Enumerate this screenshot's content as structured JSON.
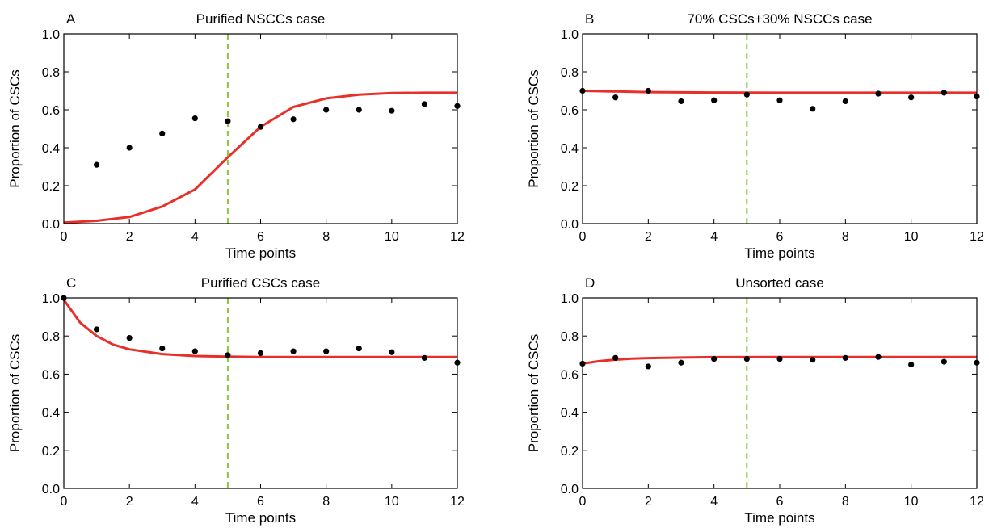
{
  "chart_data": [
    {
      "panel": "A",
      "title": "Purified NSCCs case",
      "type": "scatter",
      "xlabel": "Time points",
      "ylabel": "Proportion of CSCs",
      "xlim": [
        0,
        12
      ],
      "ylim": [
        0,
        1.0
      ],
      "xticks": [
        "0",
        "2",
        "4",
        "6",
        "8",
        "10",
        "12"
      ],
      "yticks": [
        "0.0",
        "0.2",
        "0.4",
        "0.6",
        "0.8",
        "1.0"
      ],
      "vline_x": 5,
      "points": {
        "x": [
          1,
          2,
          3,
          4,
          5,
          6,
          7,
          8,
          9,
          10,
          11,
          12
        ],
        "y": [
          0.31,
          0.4,
          0.475,
          0.555,
          0.54,
          0.51,
          0.55,
          0.6,
          0.6,
          0.595,
          0.63,
          0.62
        ]
      },
      "curve": {
        "x": [
          0,
          1,
          2,
          3,
          4,
          5,
          6,
          7,
          8,
          9,
          10,
          11,
          12
        ],
        "y": [
          0.005,
          0.015,
          0.035,
          0.09,
          0.18,
          0.35,
          0.51,
          0.615,
          0.66,
          0.68,
          0.688,
          0.69,
          0.69
        ]
      }
    },
    {
      "panel": "B",
      "title": "70% CSCs+30% NSCCs case",
      "type": "scatter",
      "xlabel": "Time points",
      "ylabel": "Proportion of CSCs",
      "xlim": [
        0,
        12
      ],
      "ylim": [
        0,
        1.0
      ],
      "xticks": [
        "0",
        "2",
        "4",
        "6",
        "8",
        "10",
        "12"
      ],
      "yticks": [
        "0.0",
        "0.2",
        "0.4",
        "0.6",
        "0.8",
        "1.0"
      ],
      "vline_x": 5,
      "points": {
        "x": [
          0,
          1,
          2,
          3,
          4,
          5,
          6,
          7,
          8,
          9,
          10,
          11,
          12
        ],
        "y": [
          0.7,
          0.665,
          0.7,
          0.645,
          0.65,
          0.68,
          0.65,
          0.605,
          0.645,
          0.685,
          0.665,
          0.69,
          0.67
        ]
      },
      "curve": {
        "x": [
          0,
          2,
          4,
          6,
          8,
          10,
          12
        ],
        "y": [
          0.7,
          0.693,
          0.691,
          0.69,
          0.69,
          0.69,
          0.69
        ]
      }
    },
    {
      "panel": "C",
      "title": "Purified CSCs case",
      "type": "scatter",
      "xlabel": "Time points",
      "ylabel": "Proportion of CSCs",
      "xlim": [
        0,
        12
      ],
      "ylim": [
        0,
        1.0
      ],
      "xticks": [
        "0",
        "2",
        "4",
        "6",
        "8",
        "10",
        "12"
      ],
      "yticks": [
        "0.0",
        "0.2",
        "0.4",
        "0.6",
        "0.8",
        "1.0"
      ],
      "vline_x": 5,
      "points": {
        "x": [
          0,
          1,
          2,
          3,
          4,
          5,
          6,
          7,
          8,
          9,
          10,
          11,
          12
        ],
        "y": [
          1.0,
          0.835,
          0.79,
          0.735,
          0.72,
          0.7,
          0.71,
          0.72,
          0.72,
          0.735,
          0.715,
          0.685,
          0.66
        ]
      },
      "curve": {
        "x": [
          0,
          0.5,
          1,
          1.5,
          2,
          3,
          4,
          5,
          6,
          8,
          10,
          12
        ],
        "y": [
          0.99,
          0.87,
          0.8,
          0.755,
          0.73,
          0.705,
          0.695,
          0.692,
          0.69,
          0.69,
          0.69,
          0.69
        ]
      }
    },
    {
      "panel": "D",
      "title": "Unsorted case",
      "type": "scatter",
      "xlabel": "Time points",
      "ylabel": "Proportion of CSCs",
      "xlim": [
        0,
        12
      ],
      "ylim": [
        0,
        1.0
      ],
      "xticks": [
        "0",
        "2",
        "4",
        "6",
        "8",
        "10",
        "12"
      ],
      "yticks": [
        "0.0",
        "0.2",
        "0.4",
        "0.6",
        "0.8",
        "1.0"
      ],
      "vline_x": 5,
      "points": {
        "x": [
          0,
          1,
          2,
          3,
          4,
          5,
          6,
          7,
          8,
          9,
          10,
          11,
          12
        ],
        "y": [
          0.655,
          0.685,
          0.64,
          0.66,
          0.68,
          0.68,
          0.68,
          0.675,
          0.685,
          0.69,
          0.65,
          0.665,
          0.66
        ]
      },
      "curve": {
        "x": [
          0,
          0.5,
          1,
          1.5,
          2,
          3,
          4,
          6,
          8,
          10,
          12
        ],
        "y": [
          0.655,
          0.668,
          0.676,
          0.681,
          0.684,
          0.687,
          0.689,
          0.69,
          0.69,
          0.69,
          0.69
        ]
      }
    }
  ],
  "colors": {
    "curve": "#e8302a",
    "vline": "#8bc53f",
    "points": "#000000"
  }
}
